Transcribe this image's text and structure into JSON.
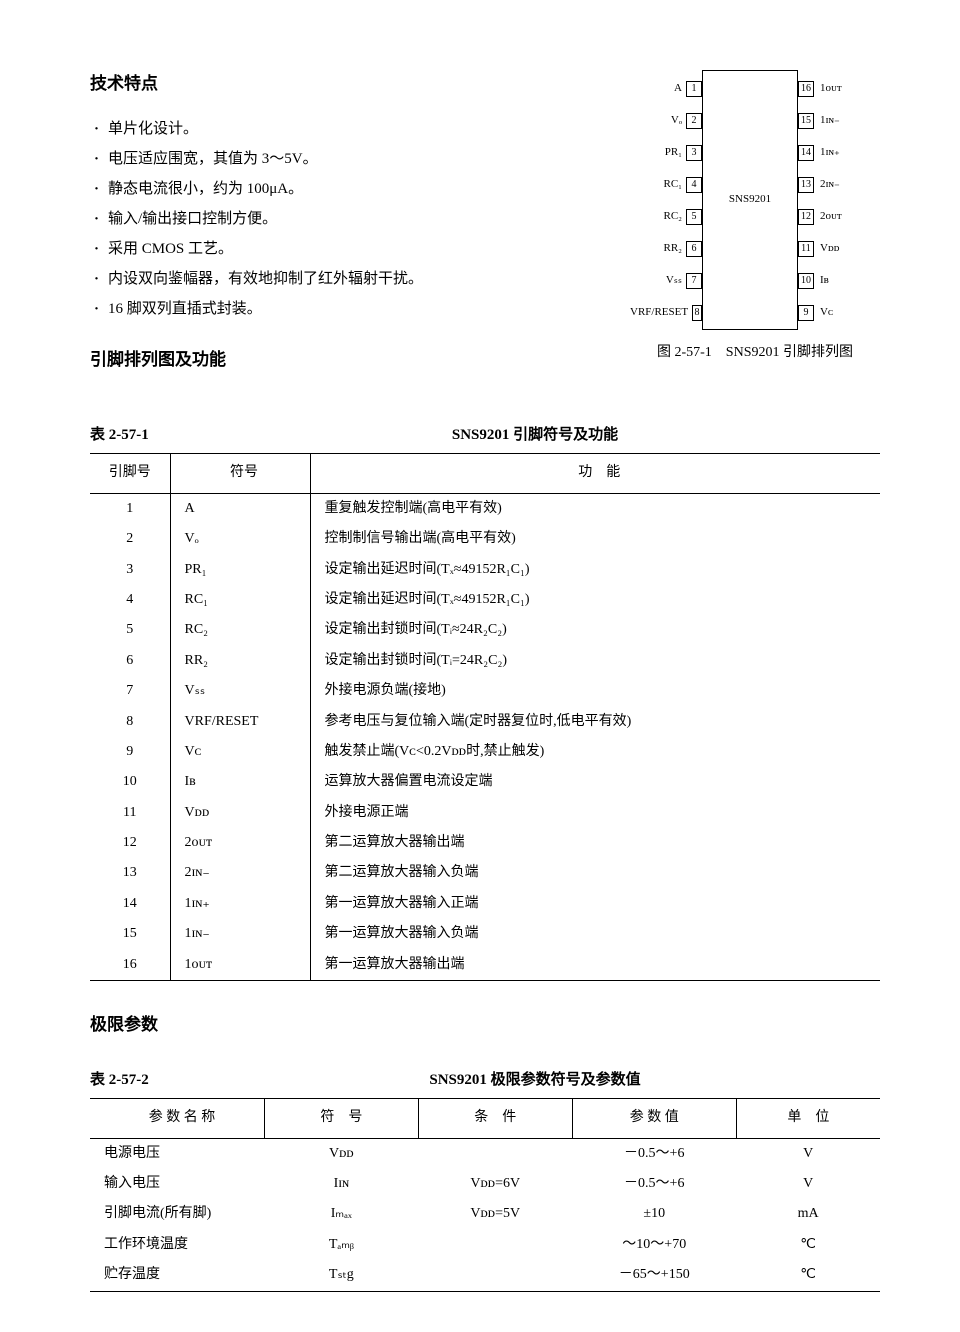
{
  "headings": {
    "features": "技术特点",
    "pinout": "引脚排列图及功能",
    "limits": "极限参数"
  },
  "features_list": [
    "单片化设计。",
    "电压适应围宽，其值为 3～5V。",
    "静态电流很小，约为 100μA。",
    "输入/输出接口控制方便。",
    "采用 CMOS 工艺。",
    "内设双向鉴幅器，有效地抑制了红外辐射干扰。",
    "16 脚双列直插式封装。"
  ],
  "diagram": {
    "chip_name": "SNS9201",
    "caption": "图 2-57-1　SNS9201 引脚排列图",
    "left_pins": [
      {
        "n": "1",
        "l": "A"
      },
      {
        "n": "2",
        "l": "Vₒ"
      },
      {
        "n": "3",
        "l": "PR₁"
      },
      {
        "n": "4",
        "l": "RC₁"
      },
      {
        "n": "5",
        "l": "RC₂"
      },
      {
        "n": "6",
        "l": "RR₂"
      },
      {
        "n": "7",
        "l": "Vₛₛ"
      },
      {
        "n": "8",
        "l": "VRF/RESET"
      }
    ],
    "right_pins": [
      {
        "n": "16",
        "l": "1ᴏᴜᴛ"
      },
      {
        "n": "15",
        "l": "1ɪɴ₋"
      },
      {
        "n": "14",
        "l": "1ɪɴ₊"
      },
      {
        "n": "13",
        "l": "2ɪɴ₋"
      },
      {
        "n": "12",
        "l": "2ᴏᴜᴛ"
      },
      {
        "n": "11",
        "l": "Vᴅᴅ"
      },
      {
        "n": "10",
        "l": "Iʙ"
      },
      {
        "n": "9",
        "l": "Vᴄ"
      }
    ]
  },
  "pin_table": {
    "table_no": "表 2-57-1",
    "title": "SNS9201 引脚符号及功能",
    "headers": [
      "引脚号",
      "符号",
      "功　能"
    ],
    "rows": [
      [
        "1",
        "A",
        "重复触发控制端(高电平有效)"
      ],
      [
        "2",
        "Vₒ",
        "控制制信号输出端(高电平有效)"
      ],
      [
        "3",
        "PR₁",
        "设定输出延迟时间(Tₓ≈49152R₁C₁)"
      ],
      [
        "4",
        "RC₁",
        "设定输出延迟时间(Tₓ≈49152R₁C₁)"
      ],
      [
        "5",
        "RC₂",
        "设定输出封锁时间(Tᵢ≈24R₂C₂)"
      ],
      [
        "6",
        "RR₂",
        "设定输出封锁时间(Tᵢ=24R₂C₂)"
      ],
      [
        "7",
        "Vₛₛ",
        "外接电源负端(接地)"
      ],
      [
        "8",
        "VRF/RESET",
        "参考电压与复位输入端(定时器复位时,低电平有效)"
      ],
      [
        "9",
        "Vᴄ",
        "触发禁止端(Vᴄ<0.2Vᴅᴅ时,禁止触发)"
      ],
      [
        "10",
        "Iʙ",
        "运算放大器偏置电流设定端"
      ],
      [
        "11",
        "Vᴅᴅ",
        "外接电源正端"
      ],
      [
        "12",
        "2ᴏᴜᴛ",
        "第二运算放大器输出端"
      ],
      [
        "13",
        "2ɪɴ₋",
        "第二运算放大器输入负端"
      ],
      [
        "14",
        "1ɪɴ₊",
        "第一运算放大器输入正端"
      ],
      [
        "15",
        "1ɪɴ₋",
        "第一运算放大器输入负端"
      ],
      [
        "16",
        "1ᴏᴜᴛ",
        "第一运算放大器输出端"
      ]
    ]
  },
  "limit_table": {
    "table_no": "表 2-57-2",
    "title": "SNS9201 极限参数符号及参数值",
    "headers": [
      "参 数 名 称",
      "符　号",
      "条　件",
      "参 数 值",
      "单　位"
    ],
    "rows": [
      [
        "电源电压",
        "Vᴅᴅ",
        "",
        "－0.5～+6",
        "V"
      ],
      [
        "输入电压",
        "Iɪɴ",
        "Vᴅᴅ=6V",
        "－0.5～+6",
        "V"
      ],
      [
        "引脚电流(所有脚)",
        "Iₘₐₓ",
        "Vᴅᴅ=5V",
        "±10",
        "mA"
      ],
      [
        "工作环境温度",
        "Tₐₘᵦ",
        "",
        "～10～+70",
        "℃"
      ],
      [
        "贮存温度",
        "Tₛₜg",
        "",
        "－65～+150",
        "℃"
      ]
    ]
  }
}
